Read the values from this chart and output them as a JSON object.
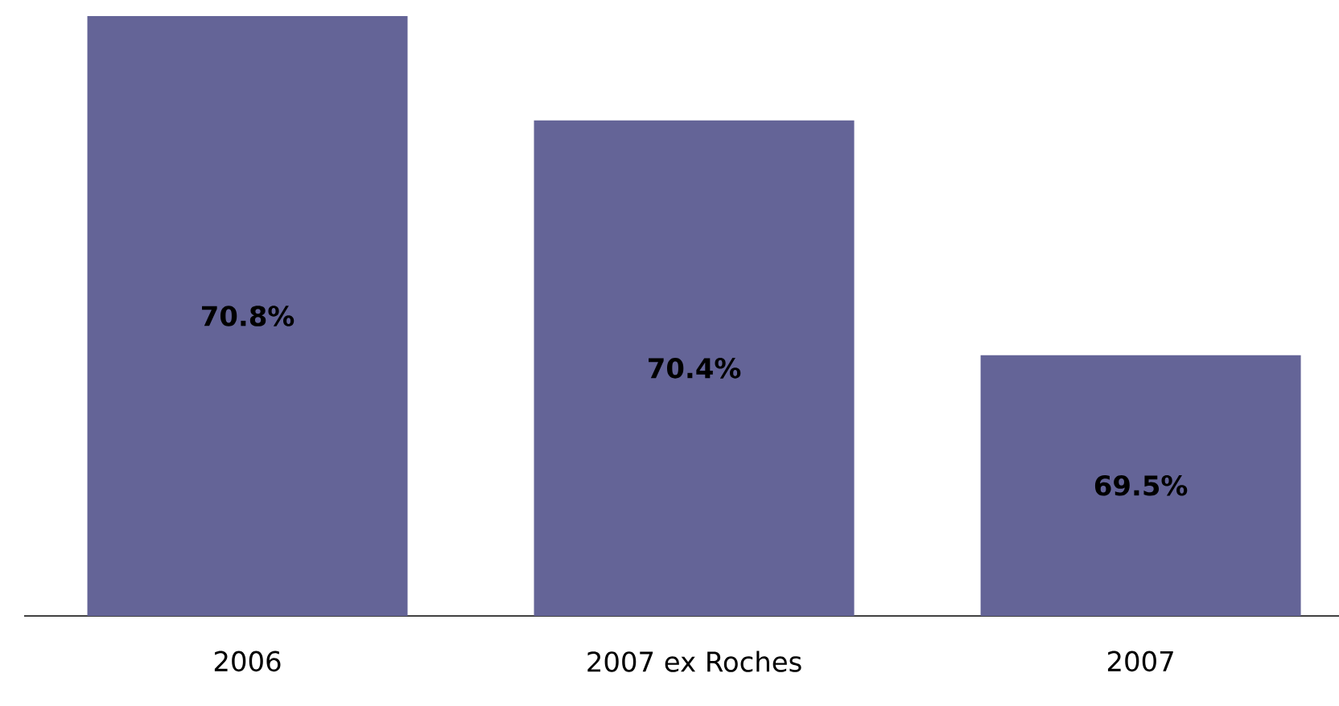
{
  "chart_data": {
    "type": "bar",
    "categories": [
      "2006",
      "2007 ex Roches",
      "2007"
    ],
    "values": [
      70.8,
      70.4,
      69.5
    ],
    "value_labels": [
      "70.8%",
      "70.4%",
      "69.5%"
    ],
    "color": "#646497",
    "ylim": [
      68.5,
      70.8
    ],
    "legend": false
  }
}
